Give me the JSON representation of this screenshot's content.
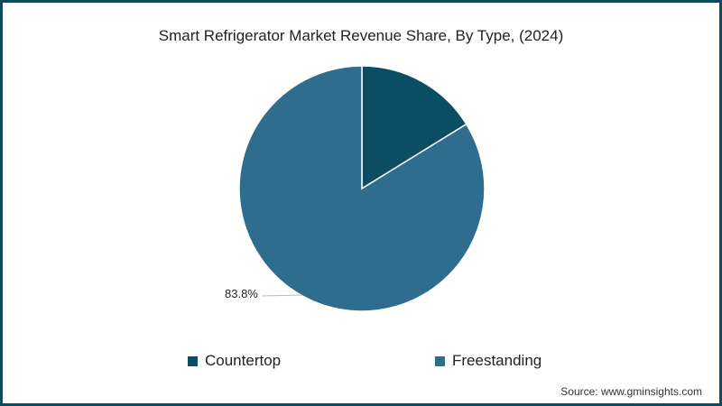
{
  "chart_data": {
    "type": "pie",
    "title": "Smart Refrigerator Market Revenue Share, By Type, (2024)",
    "categories": [
      "Countertop",
      "Freestanding"
    ],
    "values": [
      16.2,
      83.8
    ],
    "colors": [
      "#0b4d63",
      "#2f6d8e"
    ],
    "labels": {
      "Freestanding": "83.8%"
    },
    "legend_position": "bottom"
  },
  "title": "Smart Refrigerator Market Revenue Share, By Type, (2024)",
  "label_freestanding": "83.8%",
  "legend": [
    {
      "label": "Countertop",
      "color": "#0b4d63"
    },
    {
      "label": "Freestanding",
      "color": "#2f6d8e"
    }
  ],
  "source": "Source: www.gminsights.com"
}
